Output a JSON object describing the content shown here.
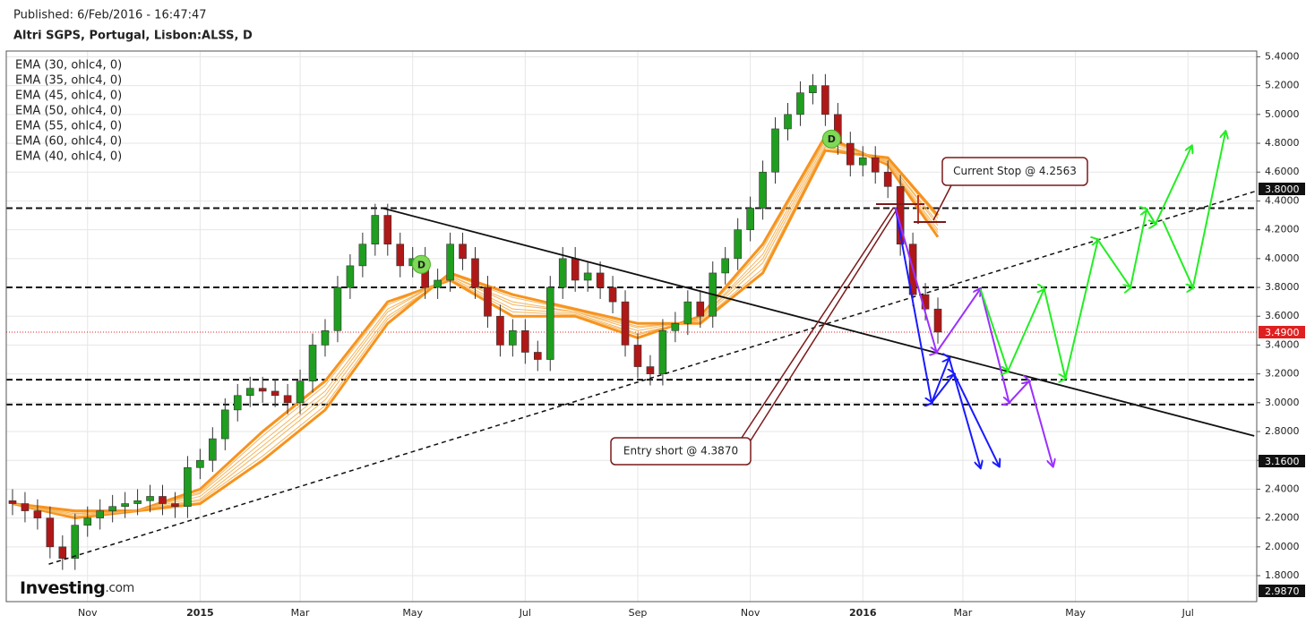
{
  "chart_data": {
    "type": "candlestick",
    "published": "Published: 6/Feb/2016 - 16:47:47",
    "title": "Altri SGPS, Portugal, Lisbon:ALSS, D",
    "logo": "Investing",
    "logo_suffix": ".com",
    "categories": [
      null,
      null,
      null,
      null,
      null,
      null,
      "Nov",
      null,
      null,
      null,
      null,
      null,
      null,
      null,
      null,
      "2015",
      null,
      null,
      null,
      null,
      null,
      null,
      null,
      "Mar",
      null,
      null,
      null,
      null,
      null,
      null,
      null,
      null,
      "May",
      null,
      null,
      null,
      null,
      null,
      null,
      null,
      null,
      "Jul",
      null,
      null,
      null,
      null,
      null,
      null,
      null,
      null,
      "Sep",
      null,
      null,
      null,
      null,
      null,
      null,
      null,
      null,
      "Nov",
      null,
      null,
      null,
      null,
      null,
      null,
      null,
      null,
      "2016",
      null,
      null,
      null,
      null,
      null,
      null,
      null,
      "Mar",
      null,
      null,
      null,
      null,
      null,
      null,
      null,
      null,
      "May",
      null,
      null,
      null,
      null,
      null,
      null,
      null,
      null,
      "Jul",
      null,
      null,
      null,
      null,
      null
    ],
    "open": [
      2.32,
      2.3,
      2.25,
      2.2,
      2.0,
      1.92,
      2.15,
      2.2,
      2.25,
      2.28,
      2.3,
      2.32,
      2.35,
      2.3,
      2.28,
      2.55,
      2.6,
      2.75,
      2.95,
      3.05,
      3.1,
      3.08,
      3.05,
      3.0,
      3.15,
      3.4,
      3.5,
      3.8,
      3.95,
      4.1,
      4.3,
      4.1,
      3.95,
      4.0,
      3.8,
      3.85,
      4.1,
      4.0,
      3.8,
      3.6,
      3.4,
      3.5,
      3.35,
      3.3,
      3.8,
      4.0,
      3.85,
      3.9,
      3.8,
      3.7,
      3.4,
      3.25,
      3.2,
      3.5,
      3.55,
      3.7,
      3.6,
      3.9,
      4.0,
      4.2,
      4.35,
      4.6,
      4.9,
      5.0,
      5.15,
      5.2,
      5.0,
      4.8,
      4.65,
      4.7,
      4.6,
      4.5,
      4.1,
      3.75,
      3.65,
      null,
      null,
      null,
      null,
      null,
      null,
      null,
      null,
      null,
      null,
      null,
      null,
      null,
      null,
      null,
      null,
      null,
      null,
      null,
      null,
      null,
      null,
      null,
      null,
      null
    ],
    "high": [
      2.4,
      2.38,
      2.33,
      2.28,
      2.08,
      2.23,
      2.28,
      2.33,
      2.36,
      2.38,
      2.4,
      2.43,
      2.43,
      2.38,
      2.63,
      2.68,
      2.83,
      3.03,
      3.13,
      3.18,
      3.18,
      3.16,
      3.13,
      3.23,
      3.48,
      3.58,
      3.88,
      4.03,
      4.18,
      4.38,
      4.38,
      4.18,
      4.08,
      4.08,
      3.93,
      4.18,
      4.18,
      4.08,
      3.88,
      3.68,
      3.58,
      3.58,
      3.43,
      3.88,
      4.08,
      4.08,
      3.98,
      3.98,
      3.88,
      3.78,
      3.48,
      3.33,
      3.58,
      3.63,
      3.78,
      3.78,
      3.98,
      4.08,
      4.28,
      4.43,
      4.68,
      4.98,
      5.08,
      5.23,
      5.28,
      5.28,
      5.08,
      4.88,
      4.78,
      4.78,
      4.68,
      4.58,
      4.18,
      3.83,
      3.73,
      null,
      null,
      null,
      null,
      null,
      null,
      null,
      null,
      null,
      null,
      null,
      null,
      null,
      null,
      null,
      null,
      null,
      null,
      null,
      null,
      null,
      null,
      null,
      null,
      null
    ],
    "low": [
      2.22,
      2.17,
      2.12,
      1.92,
      1.84,
      1.84,
      2.07,
      2.12,
      2.17,
      2.2,
      2.22,
      2.24,
      2.22,
      2.2,
      2.2,
      2.47,
      2.52,
      2.67,
      2.87,
      2.97,
      3.0,
      2.97,
      2.92,
      2.92,
      3.07,
      3.32,
      3.42,
      3.72,
      3.87,
      4.02,
      4.02,
      3.87,
      3.87,
      3.72,
      3.72,
      3.77,
      3.92,
      3.72,
      3.52,
      3.32,
      3.32,
      3.27,
      3.22,
      3.22,
      3.72,
      3.77,
      3.77,
      3.72,
      3.62,
      3.32,
      3.17,
      3.12,
      3.12,
      3.42,
      3.47,
      3.52,
      3.52,
      3.82,
      3.92,
      4.12,
      4.27,
      4.52,
      4.82,
      4.92,
      5.07,
      4.92,
      4.72,
      4.57,
      4.57,
      4.52,
      4.42,
      4.02,
      3.67,
      3.57,
      3.41,
      null,
      null,
      null,
      null,
      null,
      null,
      null,
      null,
      null,
      null,
      null,
      null,
      null,
      null,
      null,
      null,
      null,
      null,
      null,
      null,
      null,
      null,
      null,
      null,
      null
    ],
    "close": [
      2.3,
      2.25,
      2.2,
      2.0,
      1.92,
      2.15,
      2.2,
      2.25,
      2.28,
      2.3,
      2.32,
      2.35,
      2.3,
      2.28,
      2.55,
      2.6,
      2.75,
      2.95,
      3.05,
      3.1,
      3.08,
      3.05,
      3.0,
      3.15,
      3.4,
      3.5,
      3.8,
      3.95,
      4.1,
      4.3,
      4.1,
      3.95,
      4.0,
      3.8,
      3.85,
      4.1,
      4.0,
      3.8,
      3.6,
      3.4,
      3.5,
      3.35,
      3.3,
      3.8,
      4.0,
      3.85,
      3.9,
      3.8,
      3.7,
      3.4,
      3.25,
      3.2,
      3.5,
      3.55,
      3.7,
      3.6,
      3.9,
      4.0,
      4.2,
      4.35,
      4.6,
      4.9,
      5.0,
      5.15,
      5.2,
      5.0,
      4.8,
      4.65,
      4.7,
      4.6,
      4.5,
      4.1,
      3.75,
      3.65,
      3.49,
      null,
      null,
      null,
      null,
      null,
      null,
      null,
      null,
      null,
      null,
      null,
      null,
      null,
      null,
      null,
      null,
      null,
      null,
      null,
      null,
      null,
      null,
      null,
      null,
      null
    ],
    "up_color": "#1f9e1f",
    "down_color": "#b01818",
    "ylim": [
      1.62,
      5.44
    ],
    "yticks": [
      {
        "value": 1.8,
        "label": "1.8000"
      },
      {
        "value": 2.0,
        "label": "2.0000"
      },
      {
        "value": 2.2,
        "label": "2.2000"
      },
      {
        "value": 2.4,
        "label": "2.4000"
      },
      {
        "value": 2.6,
        "label": "2.6000"
      },
      {
        "value": 2.8,
        "label": "2.8000"
      },
      {
        "value": 3.0,
        "label": "3.0000"
      },
      {
        "value": 3.2,
        "label": "3.2000"
      },
      {
        "value": 3.4,
        "label": "3.4000"
      },
      {
        "value": 3.6,
        "label": "3.6000"
      },
      {
        "value": 3.8,
        "label": "3.8000"
      },
      {
        "value": 4.0,
        "label": "4.0000"
      },
      {
        "value": 4.2,
        "label": "4.2000"
      },
      {
        "value": 4.4,
        "label": "4.4000"
      },
      {
        "value": 4.6,
        "label": "4.6000"
      },
      {
        "value": 4.8,
        "label": "4.8000"
      },
      {
        "value": 5.0,
        "label": "5.0000"
      },
      {
        "value": 5.2,
        "label": "5.2000"
      },
      {
        "value": 5.4,
        "label": "5.4000"
      }
    ],
    "grid": true,
    "series": [
      {
        "name": "EMA (30, ohlc4, 0)",
        "color": "#f7931e",
        "width": 3,
        "x": [
          0,
          5,
          10,
          15,
          20,
          25,
          30,
          35,
          40,
          45,
          50,
          55,
          60,
          65,
          70,
          74
        ],
        "values": [
          2.3,
          2.2,
          2.25,
          2.4,
          2.8,
          3.15,
          3.7,
          3.85,
          3.6,
          3.6,
          3.45,
          3.6,
          4.1,
          4.85,
          4.65,
          4.15
        ]
      },
      {
        "name": "EMA (35, ohlc4, 0)",
        "color": "#f5b55a",
        "width": 1,
        "x": [
          0,
          5,
          10,
          15,
          20,
          25,
          30,
          35,
          40,
          45,
          50,
          55,
          60,
          65,
          70,
          74
        ],
        "values": [
          2.3,
          2.21,
          2.25,
          2.38,
          2.77,
          3.12,
          3.68,
          3.86,
          3.63,
          3.61,
          3.47,
          3.59,
          4.07,
          4.83,
          4.66,
          4.18
        ]
      },
      {
        "name": "EMA (45, ohlc4, 0)",
        "color": "#f5b55a",
        "width": 1,
        "x": [
          0,
          5,
          10,
          15,
          20,
          25,
          30,
          35,
          40,
          45,
          50,
          55,
          60,
          65,
          70,
          74
        ],
        "values": [
          2.3,
          2.23,
          2.25,
          2.35,
          2.7,
          3.05,
          3.63,
          3.88,
          3.68,
          3.63,
          3.5,
          3.58,
          4.0,
          4.8,
          4.68,
          4.23
        ]
      },
      {
        "name": "EMA (50, ohlc4, 0)",
        "color": "#f5b55a",
        "width": 1,
        "x": [
          0,
          5,
          10,
          15,
          20,
          25,
          30,
          35,
          40,
          45,
          50,
          55,
          60,
          65,
          70,
          74
        ],
        "values": [
          2.3,
          2.23,
          2.25,
          2.33,
          2.67,
          3.02,
          3.6,
          3.88,
          3.7,
          3.63,
          3.52,
          3.57,
          3.97,
          4.78,
          4.68,
          4.25
        ]
      },
      {
        "name": "EMA (55, ohlc4, 0)",
        "color": "#f5b55a",
        "width": 1,
        "x": [
          0,
          5,
          10,
          15,
          20,
          25,
          30,
          35,
          40,
          45,
          50,
          55,
          60,
          65,
          70,
          74
        ],
        "values": [
          2.3,
          2.24,
          2.25,
          2.32,
          2.63,
          2.98,
          3.58,
          3.89,
          3.73,
          3.64,
          3.53,
          3.56,
          3.93,
          4.77,
          4.69,
          4.28
        ]
      },
      {
        "name": "EMA (60, ohlc4, 0)",
        "color": "#f7931e",
        "width": 3,
        "x": [
          0,
          5,
          10,
          15,
          20,
          25,
          30,
          35,
          40,
          45,
          50,
          55,
          60,
          65,
          70,
          74
        ],
        "values": [
          2.3,
          2.25,
          2.25,
          2.3,
          2.6,
          2.95,
          3.55,
          3.9,
          3.75,
          3.65,
          3.55,
          3.55,
          3.9,
          4.75,
          4.7,
          4.3
        ]
      },
      {
        "name": "EMA (40, ohlc4, 0)",
        "color": "#f5b55a",
        "width": 1,
        "x": [
          0,
          5,
          10,
          15,
          20,
          25,
          30,
          35,
          40,
          45,
          50,
          55,
          60,
          65,
          70,
          74
        ],
        "values": [
          2.3,
          2.22,
          2.25,
          2.37,
          2.73,
          3.08,
          3.65,
          3.87,
          3.65,
          3.62,
          3.48,
          3.58,
          4.03,
          4.82,
          4.67,
          4.2
        ]
      }
    ],
    "hlines": [
      4.35,
      3.8,
      3.16,
      2.987
    ],
    "last_price": 3.49,
    "trendlines": [
      {
        "style": "solid",
        "points": [
          [
            29.6,
            4.35
          ],
          [
            99.3,
            2.77
          ]
        ]
      },
      {
        "style": "dashed",
        "points": [
          [
            2.9,
            1.88
          ],
          [
            99.5,
            4.47
          ]
        ]
      }
    ],
    "projections": [
      {
        "color": "#1a1aff",
        "points": [
          [
            70.6,
            4.355
          ],
          [
            73.5,
            3.0
          ],
          [
            74.9,
            3.31
          ],
          [
            77.4,
            2.55
          ]
        ]
      },
      {
        "color": "#1a1aff",
        "points": [
          [
            73.5,
            3.0
          ],
          [
            75.3,
            3.2
          ],
          [
            78.9,
            2.56
          ]
        ]
      },
      {
        "color": "#9b30ff",
        "points": [
          [
            70.6,
            4.355
          ],
          [
            73.9,
            3.35
          ],
          [
            77.4,
            3.79
          ]
        ]
      },
      {
        "color": "#9b30ff",
        "points": [
          [
            77.4,
            3.79
          ],
          [
            79.7,
            3.0
          ],
          [
            81.3,
            3.15
          ],
          [
            83.2,
            2.56
          ]
        ]
      },
      {
        "color": "#22ee22",
        "points": [
          [
            77.4,
            3.79
          ],
          [
            79.6,
            3.22
          ],
          [
            82.5,
            3.79
          ],
          [
            84.2,
            3.17
          ],
          [
            86.8,
            4.13
          ],
          [
            89.4,
            3.8
          ],
          [
            90.7,
            4.34
          ],
          [
            91.4,
            4.24
          ],
          [
            94.3,
            4.78
          ]
        ]
      },
      {
        "color": "#22ee22",
        "points": [
          [
            92.0,
            4.26
          ],
          [
            94.4,
            3.8
          ],
          [
            97.0,
            4.88
          ]
        ]
      }
    ],
    "price_labels": [
      {
        "value": 3.8,
        "label": "3.8000"
      },
      {
        "value": 3.49,
        "label": "3.4900"
      },
      {
        "value": 3.16,
        "label": "3.1600"
      },
      {
        "value": 2.987,
        "label": "2.9870"
      }
    ],
    "annotations": [
      "Entry short @ 4.3870",
      "Current Stop @ 4.2563"
    ],
    "markers": [
      {
        "label": "D",
        "x": 32.7,
        "y": 3.96
      },
      {
        "label": "D",
        "x": 65.5,
        "y": 4.83
      }
    ]
  }
}
